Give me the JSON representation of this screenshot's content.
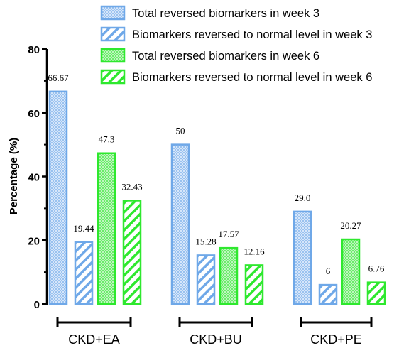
{
  "chart_data": {
    "type": "bar",
    "title": "",
    "xlabel": "",
    "ylabel": "Percentage (%)",
    "ylim": [
      0,
      80
    ],
    "yticks": [
      0,
      20,
      40,
      60,
      80
    ],
    "grid": false,
    "legend_position": "top",
    "categories": [
      "CKD+EA",
      "CKD+BU",
      "CKD+PE"
    ],
    "series": [
      {
        "name": "Total reversed biomarkers in week 3",
        "color": "#6fa8e8",
        "pattern": "dots",
        "values": [
          66.67,
          50,
          29.0
        ],
        "labels": [
          "66.67",
          "50",
          "29.0"
        ]
      },
      {
        "name": "Biomarkers reversed to normal level in week 3",
        "color": "#6fa8e8",
        "pattern": "diagonal",
        "values": [
          19.44,
          15.28,
          6
        ],
        "labels": [
          "19.44",
          "15.28",
          "6"
        ]
      },
      {
        "name": "Total reversed biomarkers in week 6",
        "color": "#2ee82e",
        "pattern": "dots",
        "values": [
          47.3,
          17.57,
          20.27
        ],
        "labels": [
          "47.3",
          "17.57",
          "20.27"
        ]
      },
      {
        "name": "Biomarkers reversed to normal level in week 6",
        "color": "#2ee82e",
        "pattern": "diagonal",
        "values": [
          32.43,
          12.16,
          6.76
        ],
        "labels": [
          "32.43",
          "12.16",
          "6.76"
        ]
      }
    ]
  }
}
